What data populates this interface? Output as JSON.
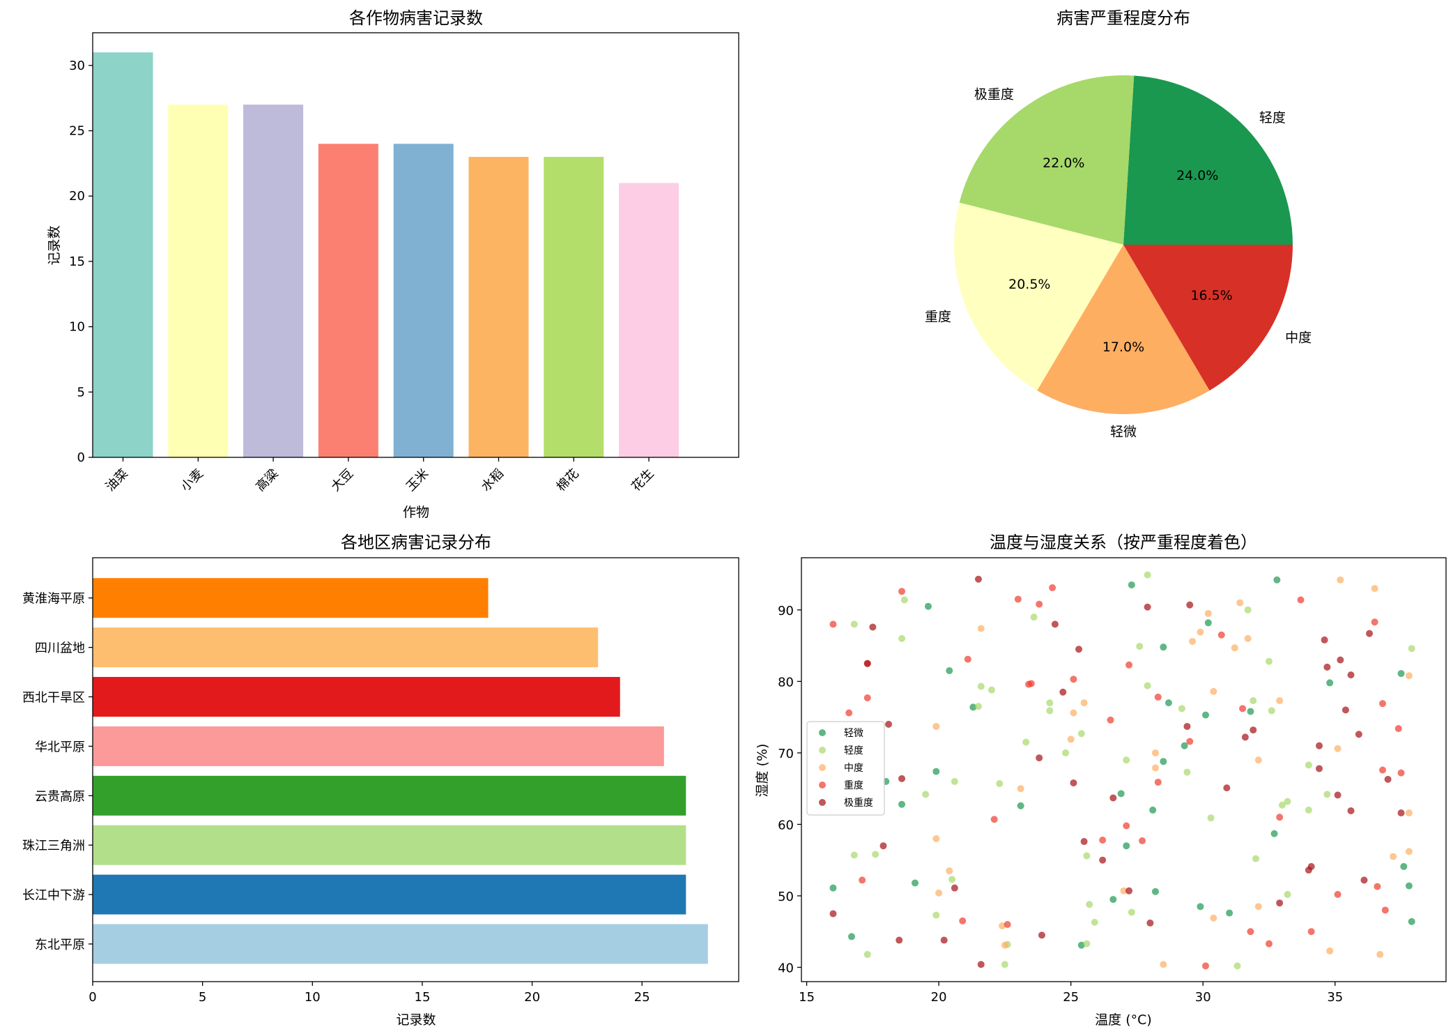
{
  "chart_data": [
    {
      "type": "bar",
      "title": "各作物病害记录数",
      "xlabel": "作物",
      "ylabel": "记录数",
      "categories": [
        "油菜",
        "小麦",
        "高粱",
        "大豆",
        "玉米",
        "水稻",
        "棉花",
        "花生"
      ],
      "values": [
        31,
        27,
        27,
        24,
        24,
        23,
        23,
        21
      ],
      "colors": [
        "#8dd3c7",
        "#ffffb3",
        "#bebada",
        "#fb8072",
        "#80b1d3",
        "#fdb462",
        "#b3de69",
        "#fccde5"
      ],
      "ylim": [
        0,
        32.5
      ],
      "yticks": [
        0,
        5,
        10,
        15,
        20,
        25,
        30
      ]
    },
    {
      "type": "pie",
      "title": "病害严重程度分布",
      "slices": [
        {
          "label": "轻度",
          "value": 24.0,
          "pct": "24.0%",
          "color": "#1a9850"
        },
        {
          "label": "极重度",
          "value": 22.0,
          "pct": "22.0%",
          "color": "#a6d96a"
        },
        {
          "label": "重度",
          "value": 20.5,
          "pct": "20.5%",
          "color": "#ffffbf"
        },
        {
          "label": "轻微",
          "value": 17.0,
          "pct": "17.0%",
          "color": "#fdae61"
        },
        {
          "label": "中度",
          "value": 16.5,
          "pct": "16.5%",
          "color": "#d73027"
        }
      ]
    },
    {
      "type": "bar",
      "orientation": "horizontal",
      "title": "各地区病害记录分布",
      "xlabel": "记录数",
      "ylabel": "",
      "categories": [
        "东北平原",
        "长江中下游",
        "珠江三角洲",
        "云贵高原",
        "华北平原",
        "西北干旱区",
        "四川盆地",
        "黄淮海平原"
      ],
      "values": [
        28,
        27,
        27,
        27,
        26,
        24,
        23,
        18
      ],
      "colors": [
        "#a6cee3",
        "#1f78b4",
        "#b2df8a",
        "#33a02c",
        "#fb9a99",
        "#e31a1c",
        "#fdbf6f",
        "#ff7f00"
      ],
      "xlim": [
        0,
        29.4
      ],
      "xticks": [
        0,
        5,
        10,
        15,
        20,
        25
      ]
    },
    {
      "type": "scatter",
      "title": "温度与湿度关系（按严重程度着色）",
      "xlabel": "温度 (°C)",
      "ylabel": "湿度 (%)",
      "xlim": [
        14.8,
        39.2
      ],
      "ylim": [
        38.0,
        97.3
      ],
      "xticks": [
        15,
        20,
        25,
        30,
        35
      ],
      "yticks": [
        40,
        50,
        60,
        70,
        80,
        90
      ],
      "legend_position": "center-left",
      "series": [
        {
          "name": "轻微",
          "color": "#1a9850",
          "points": [
            [
              19.6,
              90.5
            ],
            [
              20.4,
              81.5
            ],
            [
              21.3,
              76.4
            ],
            [
              19.9,
              67.4
            ],
            [
              18.0,
              66.0
            ],
            [
              18.6,
              62.8
            ],
            [
              19.1,
              51.8
            ],
            [
              16.0,
              51.1
            ],
            [
              16.7,
              44.3
            ],
            [
              23.1,
              62.6
            ],
            [
              25.4,
              43.1
            ],
            [
              26.9,
              64.3
            ],
            [
              27.1,
              57.0
            ],
            [
              26.6,
              49.5
            ],
            [
              27.3,
              93.5
            ],
            [
              28.5,
              84.8
            ],
            [
              28.7,
              77.0
            ],
            [
              28.5,
              68.8
            ],
            [
              29.3,
              71.0
            ],
            [
              28.1,
              62.0
            ],
            [
              28.2,
              50.6
            ],
            [
              29.9,
              48.5
            ],
            [
              30.1,
              75.3
            ],
            [
              30.2,
              88.2
            ],
            [
              31.0,
              47.6
            ],
            [
              31.8,
              75.8
            ],
            [
              32.8,
              94.2
            ],
            [
              32.7,
              58.7
            ],
            [
              34.8,
              79.8
            ],
            [
              37.5,
              81.1
            ],
            [
              37.6,
              54.1
            ],
            [
              37.8,
              51.4
            ],
            [
              37.9,
              46.4
            ]
          ]
        },
        {
          "name": "轻度",
          "color": "#a6d96a",
          "points": [
            [
              16.8,
              88.0
            ],
            [
              16.8,
              55.7
            ],
            [
              17.3,
              41.8
            ],
            [
              17.6,
              55.8
            ],
            [
              18.6,
              86.0
            ],
            [
              18.7,
              91.4
            ],
            [
              19.5,
              64.2
            ],
            [
              19.9,
              47.3
            ],
            [
              20.5,
              52.3
            ],
            [
              20.6,
              66.0
            ],
            [
              21.5,
              76.5
            ],
            [
              21.6,
              79.3
            ],
            [
              22.0,
              78.8
            ],
            [
              22.3,
              65.7
            ],
            [
              22.5,
              40.4
            ],
            [
              22.6,
              43.2
            ],
            [
              23.3,
              71.5
            ],
            [
              23.6,
              89.0
            ],
            [
              24.2,
              77.0
            ],
            [
              24.2,
              75.9
            ],
            [
              24.8,
              70.0
            ],
            [
              25.4,
              72.7
            ],
            [
              25.6,
              55.6
            ],
            [
              25.6,
              43.3
            ],
            [
              25.7,
              48.8
            ],
            [
              25.9,
              46.3
            ],
            [
              27.1,
              69.0
            ],
            [
              27.3,
              47.7
            ],
            [
              27.6,
              84.9
            ],
            [
              27.9,
              79.4
            ],
            [
              27.9,
              94.9
            ],
            [
              29.2,
              76.2
            ],
            [
              29.4,
              67.3
            ],
            [
              30.3,
              60.9
            ],
            [
              31.3,
              40.2
            ],
            [
              31.7,
              90.0
            ],
            [
              31.9,
              77.3
            ],
            [
              32.0,
              55.2
            ],
            [
              32.5,
              82.8
            ],
            [
              32.6,
              75.9
            ],
            [
              33.0,
              62.7
            ],
            [
              33.2,
              63.2
            ],
            [
              33.2,
              50.2
            ],
            [
              34.0,
              68.3
            ],
            [
              34.0,
              62.0
            ],
            [
              34.7,
              64.2
            ],
            [
              37.9,
              84.6
            ]
          ]
        },
        {
          "name": "中度",
          "color": "#fdae61",
          "points": [
            [
              19.9,
              73.7
            ],
            [
              19.9,
              58.0
            ],
            [
              20.0,
              50.4
            ],
            [
              20.4,
              53.5
            ],
            [
              21.6,
              87.4
            ],
            [
              22.4,
              45.8
            ],
            [
              22.5,
              43.1
            ],
            [
              23.1,
              65.0
            ],
            [
              25.0,
              71.9
            ],
            [
              25.1,
              75.6
            ],
            [
              25.5,
              77.0
            ],
            [
              27.0,
              50.7
            ],
            [
              28.2,
              70.0
            ],
            [
              28.2,
              67.9
            ],
            [
              28.5,
              40.4
            ],
            [
              29.6,
              85.6
            ],
            [
              29.9,
              86.9
            ],
            [
              30.2,
              89.5
            ],
            [
              30.4,
              78.6
            ],
            [
              30.4,
              46.9
            ],
            [
              31.2,
              84.7
            ],
            [
              31.4,
              91.0
            ],
            [
              31.7,
              86.0
            ],
            [
              32.1,
              69.0
            ],
            [
              32.1,
              48.5
            ],
            [
              32.9,
              77.3
            ],
            [
              34.8,
              42.3
            ],
            [
              35.1,
              70.6
            ],
            [
              35.2,
              94.2
            ],
            [
              36.5,
              93.0
            ],
            [
              36.7,
              41.8
            ],
            [
              37.2,
              55.5
            ],
            [
              37.8,
              80.8
            ],
            [
              37.8,
              61.6
            ],
            [
              37.8,
              56.2
            ]
          ]
        },
        {
          "name": "重度",
          "color": "#ef3b2c",
          "points": [
            [
              16.0,
              88.0
            ],
            [
              16.6,
              75.6
            ],
            [
              17.1,
              52.2
            ],
            [
              17.3,
              82.5
            ],
            [
              17.3,
              77.7
            ],
            [
              18.6,
              92.6
            ],
            [
              20.9,
              46.5
            ],
            [
              21.1,
              83.1
            ],
            [
              22.1,
              60.7
            ],
            [
              22.6,
              46.0
            ],
            [
              23.0,
              91.5
            ],
            [
              23.4,
              79.6
            ],
            [
              23.5,
              79.7
            ],
            [
              23.8,
              90.8
            ],
            [
              24.3,
              93.1
            ],
            [
              25.1,
              80.3
            ],
            [
              26.2,
              57.8
            ],
            [
              26.5,
              74.6
            ],
            [
              27.1,
              59.8
            ],
            [
              27.2,
              82.3
            ],
            [
              27.7,
              57.7
            ],
            [
              28.3,
              77.8
            ],
            [
              28.3,
              65.9
            ],
            [
              29.5,
              71.6
            ],
            [
              30.1,
              40.2
            ],
            [
              30.7,
              86.5
            ],
            [
              31.5,
              76.2
            ],
            [
              31.8,
              45.0
            ],
            [
              32.5,
              43.3
            ],
            [
              32.9,
              61.0
            ],
            [
              33.7,
              91.4
            ],
            [
              34.1,
              45.0
            ],
            [
              35.1,
              50.2
            ],
            [
              36.6,
              51.3
            ],
            [
              36.5,
              88.3
            ],
            [
              36.8,
              67.6
            ],
            [
              36.9,
              48.0
            ],
            [
              37.4,
              73.4
            ],
            [
              37.5,
              67.2
            ],
            [
              36.8,
              76.9
            ]
          ]
        },
        {
          "name": "极重度",
          "color": "#a50f15",
          "points": [
            [
              16.0,
              47.5
            ],
            [
              17.3,
              82.5
            ],
            [
              17.5,
              87.6
            ],
            [
              18.1,
              74.0
            ],
            [
              17.9,
              57.0
            ],
            [
              18.6,
              66.4
            ],
            [
              18.5,
              43.8
            ],
            [
              20.2,
              43.8
            ],
            [
              20.6,
              51.1
            ],
            [
              21.5,
              94.3
            ],
            [
              21.6,
              40.4
            ],
            [
              23.9,
              44.5
            ],
            [
              23.8,
              69.3
            ],
            [
              24.4,
              88.0
            ],
            [
              24.7,
              78.5
            ],
            [
              25.1,
              65.8
            ],
            [
              25.3,
              84.5
            ],
            [
              25.5,
              57.6
            ],
            [
              26.2,
              55.0
            ],
            [
              26.6,
              63.7
            ],
            [
              27.2,
              50.7
            ],
            [
              27.9,
              90.4
            ],
            [
              28.0,
              46.2
            ],
            [
              29.5,
              90.7
            ],
            [
              29.4,
              73.7
            ],
            [
              30.9,
              65.1
            ],
            [
              31.6,
              72.2
            ],
            [
              31.9,
              73.2
            ],
            [
              32.9,
              49.0
            ],
            [
              34.0,
              53.6
            ],
            [
              34.1,
              54.1
            ],
            [
              34.4,
              71.0
            ],
            [
              34.4,
              67.8
            ],
            [
              34.6,
              85.8
            ],
            [
              34.7,
              82.0
            ],
            [
              35.2,
              83.0
            ],
            [
              35.1,
              64.1
            ],
            [
              35.4,
              76.0
            ],
            [
              35.6,
              80.9
            ],
            [
              35.6,
              61.9
            ],
            [
              35.9,
              72.6
            ],
            [
              36.1,
              52.2
            ],
            [
              36.3,
              86.7
            ],
            [
              37.0,
              66.3
            ],
            [
              37.5,
              61.6
            ]
          ]
        }
      ]
    }
  ]
}
